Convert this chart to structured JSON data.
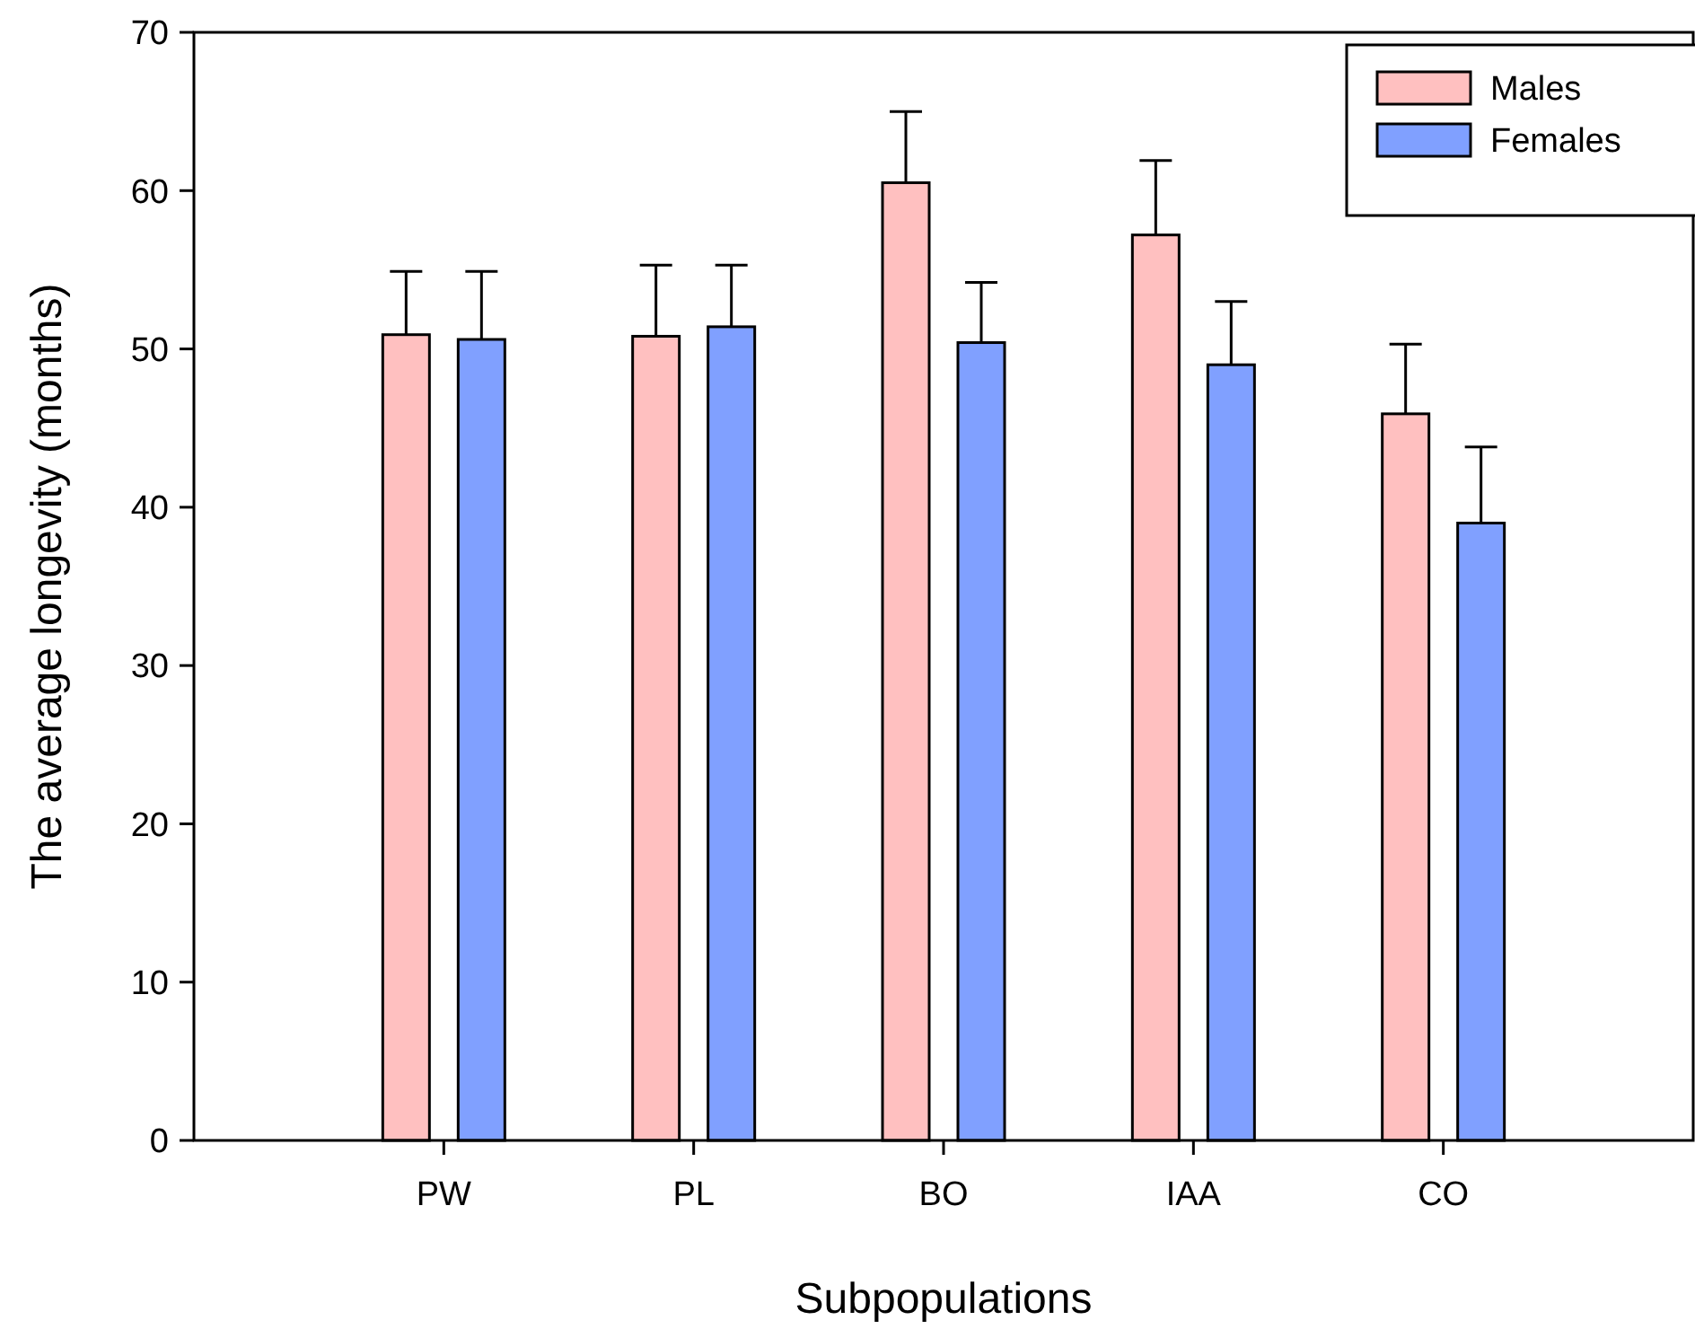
{
  "chart_data": {
    "type": "bar",
    "xlabel": "Subpopulations",
    "ylabel": "The average longevity (months)",
    "categories": [
      "PW",
      "PL",
      "BO",
      "IAA",
      "CO"
    ],
    "series": [
      {
        "name": "Males",
        "color": "#ffc0c0",
        "values": [
          50.9,
          50.8,
          60.5,
          57.2,
          45.9
        ],
        "errors": [
          [
            50.9,
            54.9
          ],
          [
            50.8,
            55.3
          ],
          [
            60.5,
            65.0
          ],
          [
            57.2,
            61.9
          ],
          [
            45.9,
            50.3
          ]
        ]
      },
      {
        "name": "Females",
        "color": "#80a0ff",
        "values": [
          50.6,
          51.4,
          50.4,
          49.0,
          39.0
        ],
        "errors": [
          [
            50.6,
            54.9
          ],
          [
            51.4,
            55.3
          ],
          [
            50.4,
            54.2
          ],
          [
            49.0,
            53.0
          ],
          [
            39.0,
            43.8
          ]
        ]
      }
    ],
    "ylim": [
      0,
      70
    ],
    "yticks": [
      0,
      10,
      20,
      30,
      40,
      50,
      60,
      70
    ],
    "grid": false,
    "legend": "top right"
  }
}
